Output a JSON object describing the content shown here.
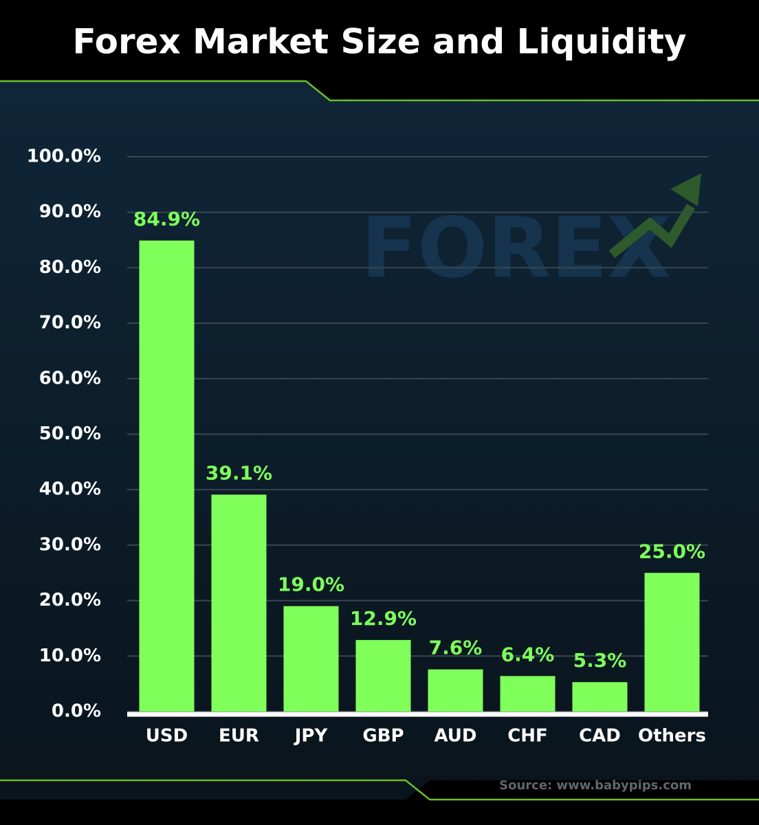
{
  "chart_data": {
    "type": "bar",
    "title": "Forex Market Size and Liquidity",
    "watermark": "FOREX",
    "source": "Source: www.babypips.com",
    "categories": [
      "USD",
      "EUR",
      "JPY",
      "GBP",
      "AUD",
      "CHF",
      "CAD",
      "Others"
    ],
    "values": [
      84.9,
      39.1,
      19.0,
      12.9,
      7.6,
      6.4,
      5.3,
      25.0
    ],
    "value_labels": [
      "84.9%",
      "39.1%",
      "19.0%",
      "12.9%",
      "7.6%",
      "6.4%",
      "5.3%",
      "25.0%"
    ],
    "color": "#80ff5a",
    "label_color": "#7dff5a",
    "ylim": [
      0,
      100
    ],
    "yticks": [
      {
        "value": 0,
        "label": "0.0%"
      },
      {
        "value": 10,
        "label": "10.0%"
      },
      {
        "value": 20,
        "label": "20.0%"
      },
      {
        "value": 30,
        "label": "30.0%"
      },
      {
        "value": 40,
        "label": "40.0%"
      },
      {
        "value": 50,
        "label": "50.0%"
      },
      {
        "value": 60,
        "label": "60.0%"
      },
      {
        "value": 70,
        "label": "70.0%"
      },
      {
        "value": 80,
        "label": "80.0%"
      },
      {
        "value": 90,
        "label": "90.0%"
      },
      {
        "value": 100,
        "label": "100.0%"
      }
    ],
    "grid": true
  }
}
